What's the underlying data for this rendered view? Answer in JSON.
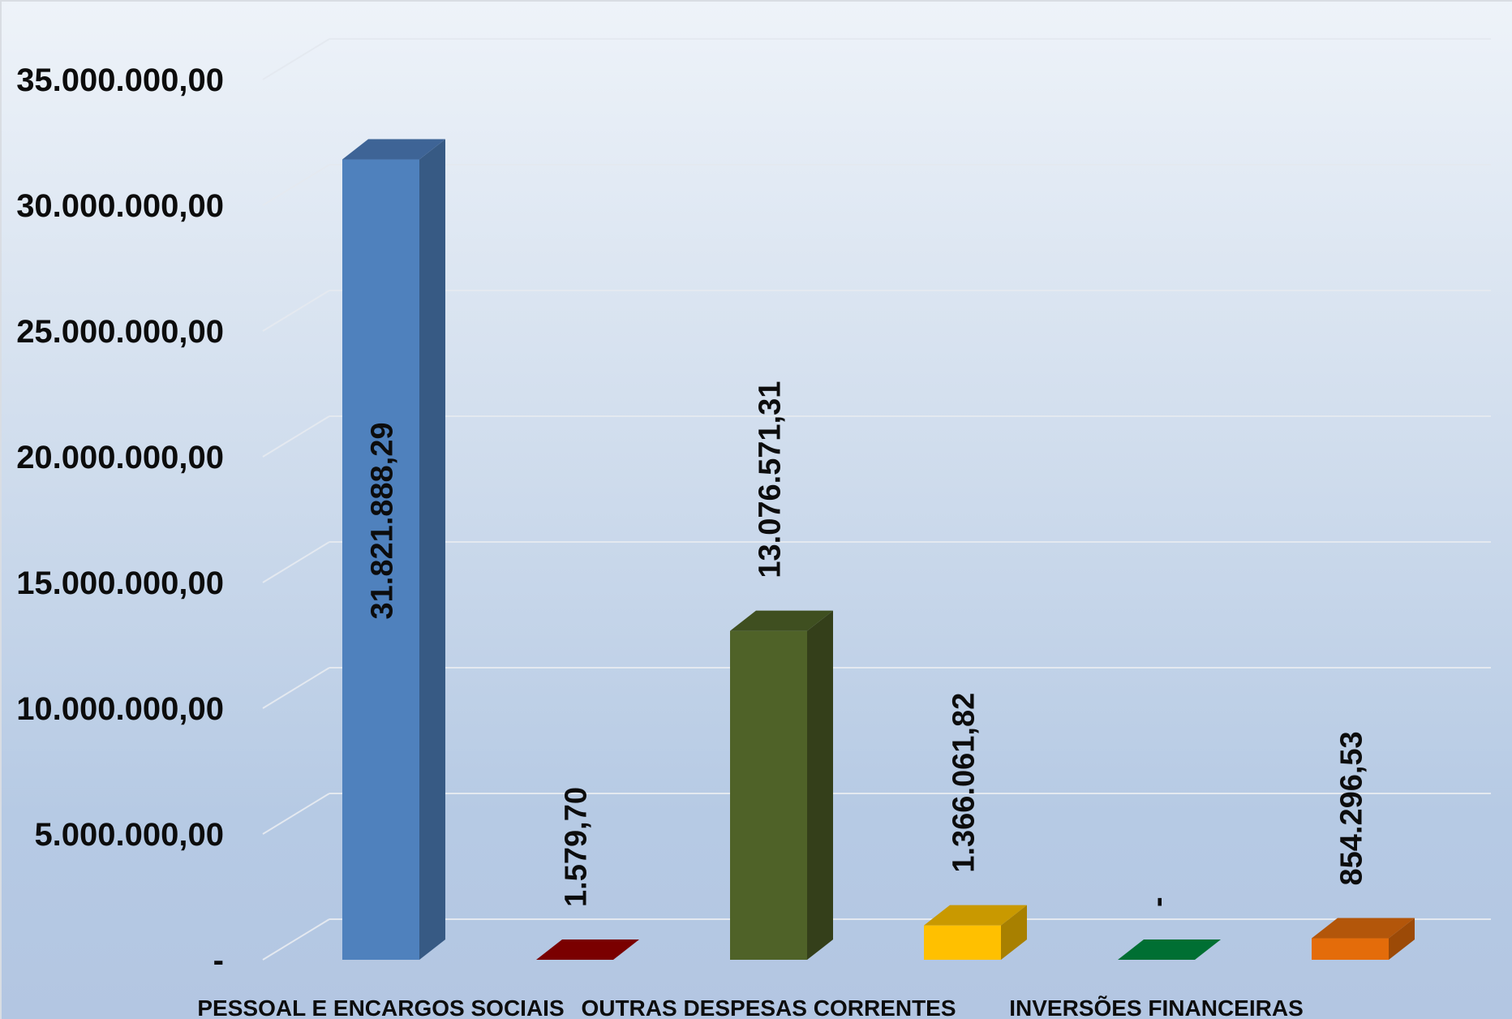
{
  "chart_data": {
    "type": "bar",
    "title": "",
    "xlabel": "",
    "ylabel": "",
    "ylim": [
      0,
      35000000
    ],
    "y_ticks": [
      0,
      5000000,
      10000000,
      15000000,
      20000000,
      25000000,
      30000000,
      35000000
    ],
    "y_tick_labels": [
      "-",
      "5.000.000,00",
      "10.000.000,00",
      "15.000.000,00",
      "20.000.000,00",
      "25.000.000,00",
      "30.000.000,00",
      "35.000.000,00"
    ],
    "grid": true,
    "legend": "none",
    "categories": [
      "PESSOAL E ENCARGOS SOCIAIS",
      "",
      "OUTRAS DESPESAS CORRENTES",
      "",
      "INVERSÕES FINANCEIRAS",
      ""
    ],
    "values": [
      31821888.29,
      1579.7,
      13076571.31,
      1366061.82,
      0,
      854296.53
    ],
    "value_labels": [
      "31.821.888,29",
      "1.579,70",
      "13.076.571,31",
      "1.366.061,82",
      "-",
      "854.296,53"
    ],
    "colors": [
      "#4f81bd",
      "#8b0000",
      "#4f6228",
      "#ffc000",
      "#00873e",
      "#e46c0a"
    ],
    "side_colors": [
      "#375a84",
      "#600000",
      "#343f1a",
      "#a88000",
      "#005c2a",
      "#9c4a07"
    ],
    "top_colors": [
      "#3e6496",
      "#7a0000",
      "#3f4f20",
      "#c99900",
      "#006f33",
      "#b3560a"
    ]
  }
}
